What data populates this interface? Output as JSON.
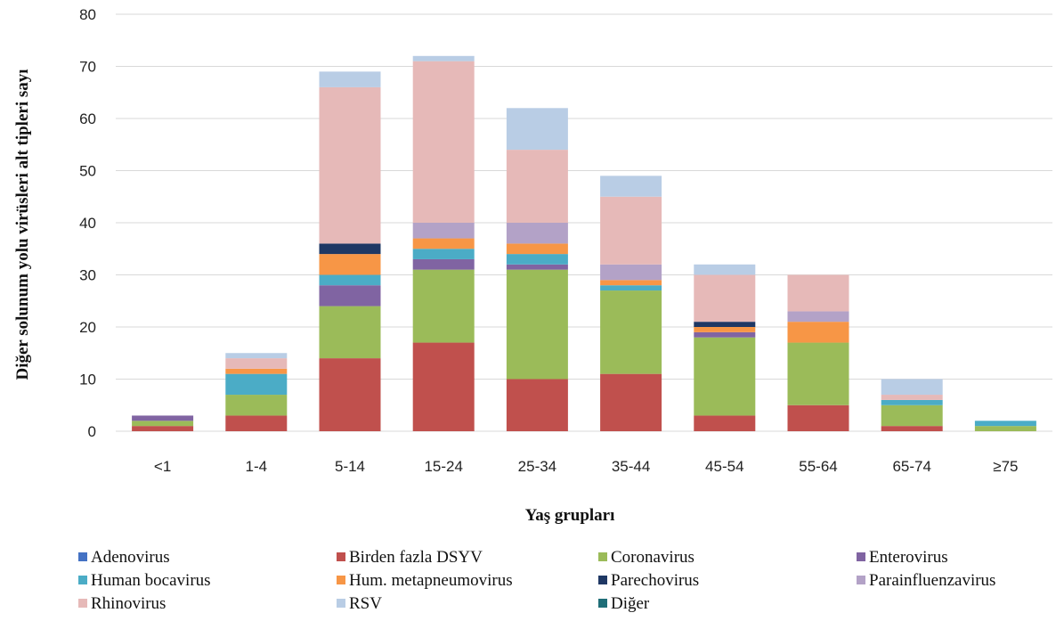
{
  "chart_data": {
    "type": "bar",
    "stacked": true,
    "title": "",
    "xlabel": "Yaş grupları",
    "ylabel": "Diğer solunum yolu virüsleri alt tipleri sayı",
    "ylim": [
      0,
      80
    ],
    "yticks": [
      0,
      10,
      20,
      30,
      40,
      50,
      60,
      70,
      80
    ],
    "grid": true,
    "legend_position": "bottom",
    "categories": [
      "<1",
      "1-4",
      "5-14",
      "15-24",
      "25-34",
      "35-44",
      "45-54",
      "55-64",
      "65-74",
      "≥75"
    ],
    "series": [
      {
        "name": "Adenovirus",
        "color": "#4472C4",
        "values": [
          0,
          0,
          0,
          0,
          0,
          0,
          0,
          0,
          0,
          0
        ]
      },
      {
        "name": "Birden fazla DSYV",
        "color": "#C0504D",
        "values": [
          1,
          3,
          14,
          17,
          10,
          11,
          3,
          5,
          1,
          0
        ]
      },
      {
        "name": "Coronavirus",
        "color": "#9BBB59",
        "values": [
          1,
          4,
          10,
          14,
          21,
          16,
          15,
          12,
          4,
          1
        ]
      },
      {
        "name": "Enterovirus",
        "color": "#8064A2",
        "values": [
          1,
          0,
          4,
          2,
          1,
          0,
          1,
          0,
          0,
          0
        ]
      },
      {
        "name": "Human bocavirus",
        "color": "#4BACC6",
        "values": [
          0,
          4,
          2,
          2,
          2,
          1,
          0,
          0,
          1,
          1
        ]
      },
      {
        "name": "Hum. metapneumovirus",
        "color": "#F79646",
        "values": [
          0,
          1,
          4,
          2,
          2,
          1,
          1,
          4,
          0,
          0
        ]
      },
      {
        "name": "Parechovirus",
        "color": "#1F3864",
        "values": [
          0,
          0,
          2,
          0,
          0,
          0,
          1,
          0,
          0,
          0
        ]
      },
      {
        "name": "Parainfluenzavirus",
        "color": "#B3A2C7",
        "values": [
          0,
          0,
          0,
          3,
          4,
          3,
          0,
          2,
          0,
          0
        ]
      },
      {
        "name": "Rhinovirus",
        "color": "#E6B9B8",
        "values": [
          0,
          2,
          30,
          31,
          14,
          13,
          9,
          7,
          1,
          0
        ]
      },
      {
        "name": "RSV",
        "color": "#B9CDE5",
        "values": [
          0,
          1,
          3,
          1,
          8,
          4,
          2,
          0,
          3,
          0
        ]
      },
      {
        "name": "Diğer",
        "color": "#1F6E78",
        "values": [
          0,
          0,
          0,
          0,
          0,
          0,
          0,
          0,
          0,
          0
        ]
      }
    ]
  }
}
